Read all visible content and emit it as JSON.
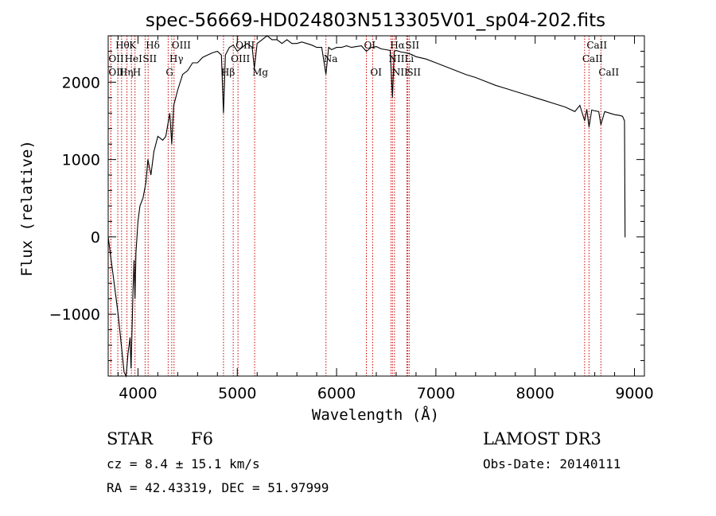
{
  "chart_data": {
    "type": "line",
    "title": "spec-56669-HD024803N513305V01_sp04-202.fits",
    "xlabel": "Wavelength (Å)",
    "ylabel": "Flux (relative)",
    "xlim": [
      3700,
      9100
    ],
    "ylim": [
      -1800,
      2600
    ],
    "x_ticks": [
      4000,
      5000,
      6000,
      7000,
      8000,
      9000
    ],
    "y_ticks": [
      -1000,
      0,
      1000,
      2000
    ],
    "grid": false,
    "series": [
      {
        "x": [
          3700,
          3720,
          3760,
          3800,
          3840,
          3860,
          3880,
          3900,
          3920,
          3930,
          3940,
          3950,
          3960,
          3970,
          3980,
          3990,
          4000,
          4020,
          4050,
          4080,
          4100,
          4130,
          4160,
          4200,
          4250,
          4280,
          4300,
          4320,
          4340,
          4360,
          4400,
          4450,
          4500,
          4550,
          4600,
          4650,
          4700,
          4750,
          4800,
          4840,
          4861,
          4880,
          4920,
          4960,
          5000,
          5050,
          5100,
          5150,
          5172,
          5200,
          5250,
          5300,
          5350,
          5400,
          5450,
          5500,
          5550,
          5600,
          5650,
          5700,
          5750,
          5800,
          5850,
          5893,
          5920,
          5950,
          6000,
          6050,
          6100,
          6150,
          6200,
          6250,
          6300,
          6350,
          6400,
          6450,
          6500,
          6540,
          6563,
          6580,
          6600,
          6650,
          6700,
          6750,
          6800,
          6900,
          7000,
          7100,
          7200,
          7300,
          7400,
          7500,
          7600,
          7700,
          7800,
          7900,
          8000,
          8100,
          8200,
          8300,
          8400,
          8450,
          8498,
          8520,
          8542,
          8570,
          8600,
          8640,
          8662,
          8700,
          8750,
          8800,
          8850,
          8880,
          8900,
          8905,
          8910
        ],
        "y": [
          0,
          -200,
          -600,
          -1000,
          -1500,
          -1750,
          -1800,
          -1500,
          -1300,
          -1700,
          -1200,
          -700,
          -300,
          -800,
          -200,
          0,
          200,
          400,
          500,
          700,
          1000,
          800,
          1100,
          1300,
          1250,
          1300,
          1450,
          1600,
          1200,
          1700,
          1900,
          2100,
          2150,
          2250,
          2250,
          2320,
          2350,
          2380,
          2400,
          2350,
          1600,
          2350,
          2450,
          2480,
          2400,
          2450,
          2500,
          2450,
          2180,
          2500,
          2550,
          2600,
          2550,
          2550,
          2500,
          2550,
          2500,
          2500,
          2520,
          2500,
          2480,
          2450,
          2450,
          2100,
          2450,
          2420,
          2450,
          2450,
          2470,
          2450,
          2460,
          2470,
          2400,
          2450,
          2460,
          2430,
          2420,
          2410,
          1800,
          2400,
          2410,
          2390,
          2380,
          2360,
          2330,
          2300,
          2250,
          2200,
          2150,
          2100,
          2060,
          2010,
          1960,
          1920,
          1880,
          1840,
          1800,
          1760,
          1720,
          1680,
          1620,
          1700,
          1500,
          1650,
          1420,
          1640,
          1630,
          1620,
          1450,
          1620,
          1600,
          1580,
          1570,
          1560,
          1500,
          0,
          0
        ],
        "color": "#000000"
      }
    ],
    "line_markers": {
      "color": "#cc0000",
      "lines": [
        {
          "x": 3797,
          "label": "Hθ",
          "row": 0
        },
        {
          "x": 3727,
          "label": "OII",
          "row": 1
        },
        {
          "x": 3727,
          "label": "OII",
          "row": 2
        },
        {
          "x": 3835,
          "label": "Hη",
          "row": 2
        },
        {
          "x": 3889,
          "label": "HeI",
          "row": 1
        },
        {
          "x": 3934,
          "label": "K",
          "row": 0
        },
        {
          "x": 3970,
          "label": "H",
          "row": 2
        },
        {
          "x": 4072,
          "label": "SII",
          "row": 1
        },
        {
          "x": 4102,
          "label": "Hδ",
          "row": 0
        },
        {
          "x": 4304,
          "label": "G",
          "row": 2
        },
        {
          "x": 4340,
          "label": "Hγ",
          "row": 1
        },
        {
          "x": 4363,
          "label": "OIII",
          "row": 0
        },
        {
          "x": 4861,
          "label": "Hβ",
          "row": 2
        },
        {
          "x": 4959,
          "label": "OIII",
          "row": 1
        },
        {
          "x": 5007,
          "label": "OIII",
          "row": 0
        },
        {
          "x": 5175,
          "label": "Mg",
          "row": 2
        },
        {
          "x": 5893,
          "label": "Na",
          "row": 1
        },
        {
          "x": 6300,
          "label": "OI",
          "row": 0
        },
        {
          "x": 6363,
          "label": "OI",
          "row": 2
        },
        {
          "x": 6548,
          "label": "NII",
          "row": 1
        },
        {
          "x": 6563,
          "label": "Hα",
          "row": 0
        },
        {
          "x": 6583,
          "label": "NII",
          "row": 2
        },
        {
          "x": 6707,
          "label": "Li",
          "row": 1
        },
        {
          "x": 6716,
          "label": "SII",
          "row": 0
        },
        {
          "x": 6731,
          "label": "SII",
          "row": 2
        },
        {
          "x": 8498,
          "label": "CaII",
          "row": 1
        },
        {
          "x": 8542,
          "label": "CaII",
          "row": 0
        },
        {
          "x": 8662,
          "label": "CaII",
          "row": 2
        }
      ]
    }
  },
  "info": {
    "class": "STAR",
    "subclass": "F6",
    "survey": "LAMOST DR3",
    "cz": "cz = 8.4 ± 15.1 km/s",
    "obs_date": "Obs-Date: 20140111",
    "coords": "RA =  42.43319, DEC =  51.97999"
  }
}
